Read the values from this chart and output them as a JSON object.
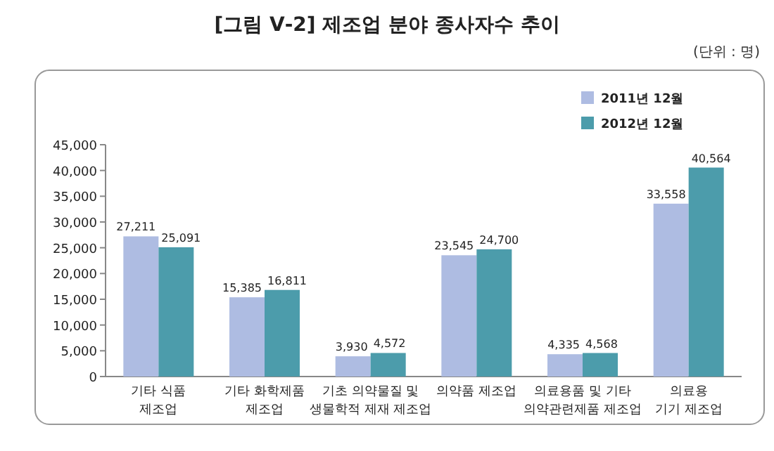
{
  "chart_data": {
    "type": "bar",
    "title": "[그림 Ⅴ-2] 제조업 분야 종사자수 추이",
    "subtitle": "(단위 : 명)",
    "categories": [
      "기타 식품\n제조업",
      "기타 화학제품\n제조업",
      "기초 의약물질 및\n생물학적 제재 제조업",
      "의약품 제조업",
      "의료용품 및 기타\n의약관련제품 제조업",
      "의료용\n기기 제조업"
    ],
    "series": [
      {
        "name": "2011년 12월",
        "color": "#aebce2",
        "values": [
          27211,
          15385,
          3930,
          23545,
          4335,
          33558
        ],
        "value_labels": [
          "27,211",
          "15,385",
          "3,930",
          "23,545",
          "4,335",
          "33,558"
        ]
      },
      {
        "name": "2012년 12월",
        "color": "#4c9cab",
        "values": [
          25091,
          16811,
          4572,
          24700,
          4568,
          40564
        ],
        "value_labels": [
          "25,091",
          "16,811",
          "4,572",
          "24,700",
          "4,568",
          "40,564"
        ]
      }
    ],
    "ylim": [
      0,
      45000
    ],
    "yticks": [
      {
        "value": 0,
        "label": "0"
      },
      {
        "value": 5000,
        "label": "5,000"
      },
      {
        "value": 10000,
        "label": "10,000"
      },
      {
        "value": 15000,
        "label": "15,000"
      },
      {
        "value": 20000,
        "label": "20,000"
      },
      {
        "value": 25000,
        "label": "25,000"
      },
      {
        "value": 30000,
        "label": "30,000"
      },
      {
        "value": 35000,
        "label": "35,000"
      },
      {
        "value": 40000,
        "label": "40,000"
      },
      {
        "value": 45000,
        "label": "45,000"
      }
    ],
    "legend": "top right"
  }
}
